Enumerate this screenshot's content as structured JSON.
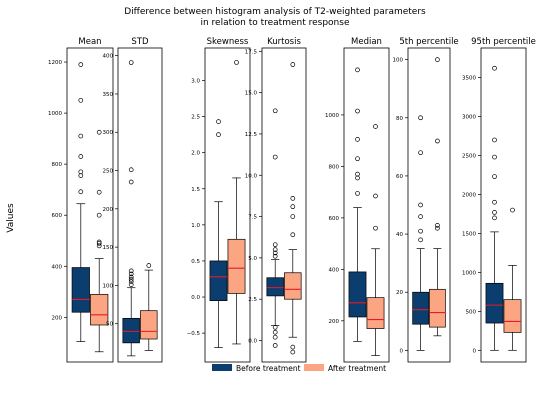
{
  "figure": {
    "title_line1": "Difference between histogram analysis of T2-weighted parameters",
    "title_line2": "in relation to treatment response",
    "ylabel": "Values",
    "colors": {
      "before": "#0b3d6e",
      "after": "#fca582",
      "median": "#e8192c"
    }
  },
  "chart_data": {
    "type": "box",
    "legend": {
      "position": "bottom-center",
      "entries": [
        {
          "name": "Before treatment",
          "color": "#0b3d6e"
        },
        {
          "name": "After treatment",
          "color": "#fca582"
        }
      ]
    },
    "panels": [
      {
        "title": "Mean",
        "ylim": [
          25,
          1255
        ],
        "ticks": [
          200,
          400,
          600,
          800,
          1000,
          1200
        ],
        "tick_labels": [
          "200",
          "400",
          "600",
          "800",
          "1000",
          "1200"
        ],
        "series": [
          {
            "name": "Before treatment",
            "whisker_low": 105,
            "q1": 220,
            "median": 270,
            "q3": 395,
            "whisker_high": 645,
            "outliers": [
              692,
              755,
              770,
              830,
              910,
              1050,
              1190
            ]
          },
          {
            "name": "After treatment",
            "whisker_low": 65,
            "q1": 170,
            "median": 210,
            "q3": 290,
            "whisker_high": 430,
            "outliers": [
              480,
              490,
              495,
              600,
              690,
              925
            ]
          }
        ]
      },
      {
        "title": "STD",
        "ylim": [
          0,
          410
        ],
        "ticks": [
          50,
          100,
          150,
          200,
          250,
          300,
          350,
          400
        ],
        "tick_labels": [
          "50",
          "100",
          "150",
          "200",
          "250",
          "300",
          "350",
          "400"
        ],
        "series": [
          {
            "name": "Before treatment",
            "whisker_low": 8,
            "q1": 25,
            "median": 40,
            "q3": 57,
            "whisker_high": 97,
            "outliers": [
              101,
              105,
              108,
              111,
              115,
              119,
              235,
              251,
              391
            ]
          },
          {
            "name": "After treatment",
            "whisker_low": 15,
            "q1": 30,
            "median": 40,
            "q3": 67,
            "whisker_high": 120,
            "outliers": [
              126
            ]
          }
        ]
      },
      {
        "title": "Skewness",
        "ylim": [
          -0.9,
          3.45
        ],
        "ticks": [
          -0.5,
          0.0,
          0.5,
          1.0,
          1.5,
          2.0,
          2.5,
          3.0
        ],
        "tick_labels": [
          "−0.5",
          "0.0",
          "0.5",
          "1.0",
          "1.5",
          "2.0",
          "2.5",
          "3.0"
        ],
        "series": [
          {
            "name": "Before treatment",
            "whisker_low": -0.7,
            "q1": -0.05,
            "median": 0.28,
            "q3": 0.5,
            "whisker_high": 1.32,
            "outliers": [
              2.25,
              2.43
            ]
          },
          {
            "name": "After treatment",
            "whisker_low": -0.65,
            "q1": 0.05,
            "median": 0.4,
            "q3": 0.8,
            "whisker_high": 1.65,
            "outliers": [
              3.25
            ]
          }
        ]
      },
      {
        "title": "Kurtosis",
        "ylim": [
          -1.3,
          17.7
        ],
        "ticks": [
          0.0,
          2.5,
          5.0,
          7.5,
          10.0,
          12.5,
          15.0,
          17.5
        ],
        "tick_labels": [
          "0.0",
          "2.5",
          "5.0",
          "7.5",
          "10.0",
          "12.5",
          "15.0",
          "17.5"
        ],
        "series": [
          {
            "name": "Before treatment",
            "whisker_low": 0.9,
            "q1": 2.7,
            "median": 3.2,
            "q3": 3.8,
            "whisker_high": 4.9,
            "outliers": [
              -0.3,
              0.2,
              0.5,
              0.8,
              5.1,
              5.3,
              5.5,
              5.8,
              11.1,
              13.9
            ]
          },
          {
            "name": "After treatment",
            "whisker_low": 0.2,
            "q1": 2.5,
            "median": 3.1,
            "q3": 4.1,
            "whisker_high": 5.5,
            "outliers": [
              -0.7,
              -0.4,
              6.4,
              7.5,
              8.1,
              8.6,
              16.7
            ]
          }
        ]
      },
      {
        "title": "Median",
        "ylim": [
          40,
          1260
        ],
        "ticks": [
          200,
          400,
          600,
          800,
          1000
        ],
        "tick_labels": [
          "200",
          "400",
          "600",
          "800",
          "1000"
        ],
        "series": [
          {
            "name": "Before treatment",
            "whisker_low": 120,
            "q1": 215,
            "median": 270,
            "q3": 390,
            "whisker_high": 640,
            "outliers": [
              695,
              755,
              770,
              830,
              905,
              1015,
              1175
            ]
          },
          {
            "name": "After treatment",
            "whisker_low": 65,
            "q1": 170,
            "median": 205,
            "q3": 290,
            "whisker_high": 480,
            "outliers": [
              560,
              685,
              955
            ]
          }
        ]
      },
      {
        "title": "5th percentile",
        "ylim": [
          -4,
          104
        ],
        "ticks": [
          0,
          20,
          40,
          60,
          80,
          100
        ],
        "tick_labels": [
          "0",
          "20",
          "40",
          "60",
          "80",
          "100"
        ],
        "series": [
          {
            "name": "Before treatment",
            "whisker_low": 0,
            "q1": 9,
            "median": 14,
            "q3": 20,
            "whisker_high": 35,
            "outliers": [
              38,
              41,
              46,
              50,
              68,
              80
            ]
          },
          {
            "name": "After treatment",
            "whisker_low": 5,
            "q1": 8,
            "median": 13,
            "q3": 21,
            "whisker_high": 35,
            "outliers": [
              42,
              43,
              72,
              100
            ]
          }
        ]
      },
      {
        "title": "95th percentile",
        "ylim": [
          -150,
          3880
        ],
        "ticks": [
          0,
          500,
          1000,
          1500,
          2000,
          2500,
          3000,
          3500
        ],
        "tick_labels": [
          "0",
          "500",
          "1000",
          "1500",
          "2000",
          "2500",
          "3000",
          "3500"
        ],
        "series": [
          {
            "name": "Before treatment",
            "whisker_low": 0,
            "q1": 350,
            "median": 580,
            "q3": 860,
            "whisker_high": 1520,
            "outliers": [
              1700,
              1770,
              1900,
              2230,
              2480,
              2700,
              3620
            ]
          },
          {
            "name": "After treatment",
            "whisker_low": 0,
            "q1": 230,
            "median": 370,
            "q3": 650,
            "whisker_high": 1090,
            "outliers": [
              1800
            ]
          }
        ]
      }
    ]
  }
}
